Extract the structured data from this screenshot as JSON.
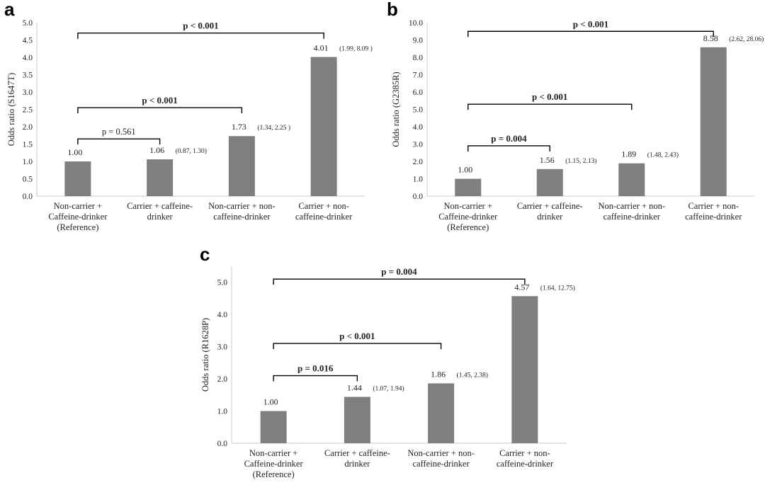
{
  "figure": {
    "panels": [
      {
        "letter": "a"
      },
      {
        "letter": "b"
      },
      {
        "letter": "c"
      }
    ]
  },
  "colors": {
    "bar": "#7f7f7f",
    "axis": "#c8c8c8",
    "bracket": "#000000"
  },
  "chart_data": [
    {
      "type": "bar",
      "panel": "a",
      "ylabel": "Odds ratio (S1647T)",
      "categories": [
        [
          "Non-carrier +",
          "Caffeine-drinker",
          "(Reference)"
        ],
        [
          "Carrier + caffeine-",
          "drinker"
        ],
        [
          "Non-carrier + non-",
          "caffeine-drinker"
        ],
        [
          "Carrier + non-",
          "caffeine-drinker"
        ]
      ],
      "values": [
        1.0,
        1.06,
        1.73,
        4.01
      ],
      "value_labels": [
        "1.00",
        "1.06",
        "1.73",
        "4.01"
      ],
      "ci_labels": [
        "",
        "(0.87, 1.30)",
        "(1.34, 2.25 )",
        "(1.99, 8.09 )"
      ],
      "ylim": [
        0,
        5.0
      ],
      "yticks": [
        "0.0",
        "0.5",
        "1.0",
        "1.5",
        "2.0",
        "2.5",
        "3.0",
        "3.5",
        "4.0",
        "4.5",
        "5.0"
      ],
      "brackets": [
        {
          "from": 0,
          "to": 1,
          "y": 1.65,
          "label": "p = 0.561",
          "bold": false
        },
        {
          "from": 0,
          "to": 2,
          "y": 2.55,
          "label": "p < 0.001",
          "bold": true
        },
        {
          "from": 0,
          "to": 3,
          "y": 4.7,
          "label": "p < 0.001",
          "bold": true
        }
      ]
    },
    {
      "type": "bar",
      "panel": "b",
      "ylabel": "Odds ratio (G2385R)",
      "categories": [
        [
          "Non-carrier +",
          "Caffeine-drinker",
          "(Reference)"
        ],
        [
          "Carrier + caffeine-",
          "drinker"
        ],
        [
          "Non-carrier + non-",
          "caffeine-drinker"
        ],
        [
          "Carrier + non-",
          "caffeine-drinker"
        ]
      ],
      "values": [
        1.0,
        1.56,
        1.89,
        8.58
      ],
      "value_labels": [
        "1.00",
        "1.56",
        "1.89",
        "8.58"
      ],
      "ci_labels": [
        "",
        "(1.15, 2.13)",
        "(1.48, 2.43)",
        "(2.62, 28.06)"
      ],
      "ylim": [
        0,
        10.0
      ],
      "yticks": [
        "0.0",
        "1.0",
        "2.0",
        "3.0",
        "4.0",
        "5.0",
        "6.0",
        "7.0",
        "8.0",
        "9.0",
        "10.0"
      ],
      "brackets": [
        {
          "from": 0,
          "to": 1,
          "y": 2.9,
          "label": "p = 0.004",
          "bold": true
        },
        {
          "from": 0,
          "to": 2,
          "y": 5.3,
          "label": "p < 0.001",
          "bold": true
        },
        {
          "from": 0,
          "to": 3,
          "y": 9.5,
          "label": "p < 0.001",
          "bold": true
        }
      ]
    },
    {
      "type": "bar",
      "panel": "c",
      "ylabel": "Odds ratio (R1628P)",
      "categories": [
        [
          "Non-carrier +",
          "Caffeine-drinker",
          "(Reference)"
        ],
        [
          "Carrier + caffeine-",
          "drinker"
        ],
        [
          "Non-carrier + non-",
          "caffeine-drinker"
        ],
        [
          "Carrier + non-",
          "caffeine-drinker"
        ]
      ],
      "values": [
        1.0,
        1.44,
        1.86,
        4.57
      ],
      "value_labels": [
        "1.00",
        "1.44",
        "1.86",
        "4.57"
      ],
      "ci_labels": [
        "",
        "(1.07, 1.94)",
        "(1.45, 2.38)",
        "(1.64, 12.75)"
      ],
      "ylim": [
        0,
        5.5
      ],
      "yticks": [
        "0.0",
        "1.0",
        "2.0",
        "3.0",
        "4.0",
        "5.0"
      ],
      "brackets": [
        {
          "from": 0,
          "to": 1,
          "y": 2.1,
          "label": "p = 0.016",
          "bold": true
        },
        {
          "from": 0,
          "to": 2,
          "y": 3.1,
          "label": "p < 0.001",
          "bold": true
        },
        {
          "from": 0,
          "to": 3,
          "y": 5.1,
          "label": "p = 0.004",
          "bold": true
        }
      ]
    }
  ]
}
